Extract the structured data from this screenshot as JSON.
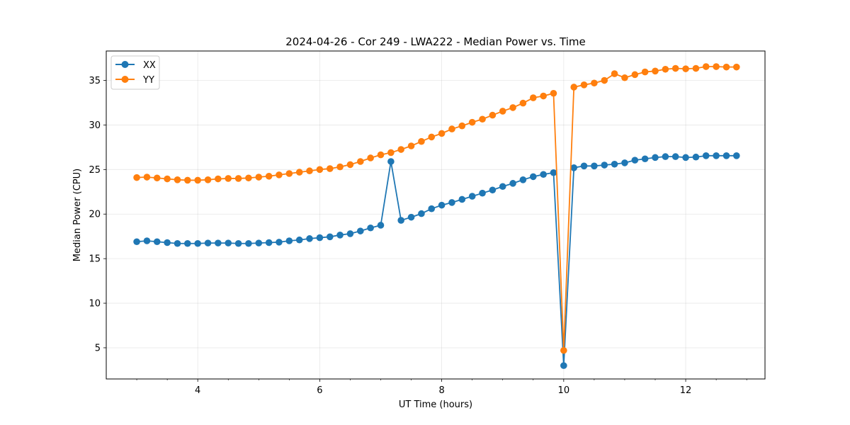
{
  "chart_data": {
    "type": "line",
    "title": "2024-04-26 - Cor 249 - LWA222 - Median Power vs. Time",
    "xlabel": "UT Time (hours)",
    "ylabel": "Median Power (CPU)",
    "xlim": [
      2.5,
      13.3
    ],
    "ylim": [
      1.5,
      38.3
    ],
    "xticks": [
      4,
      6,
      8,
      10,
      12
    ],
    "yticks": [
      5,
      10,
      15,
      20,
      25,
      30,
      35
    ],
    "grid": true,
    "legend": "top-left",
    "x": [
      3.0,
      3.167,
      3.333,
      3.5,
      3.667,
      3.833,
      4.0,
      4.167,
      4.333,
      4.5,
      4.667,
      4.833,
      5.0,
      5.167,
      5.333,
      5.5,
      5.667,
      5.833,
      6.0,
      6.167,
      6.333,
      6.5,
      6.667,
      6.833,
      7.0,
      7.167,
      7.333,
      7.5,
      7.667,
      7.833,
      8.0,
      8.167,
      8.333,
      8.5,
      8.667,
      8.833,
      9.0,
      9.167,
      9.333,
      9.5,
      9.667,
      9.833,
      10.0,
      10.167,
      10.333,
      10.5,
      10.667,
      10.833,
      11.0,
      11.167,
      11.333,
      11.5,
      11.667,
      11.833,
      12.0,
      12.167,
      12.333,
      12.5,
      12.667,
      12.833
    ],
    "series": [
      {
        "name": "XX",
        "color": "#1f77b4",
        "values": [
          16.9,
          17.0,
          16.9,
          16.8,
          16.7,
          16.7,
          16.7,
          16.75,
          16.75,
          16.75,
          16.7,
          16.7,
          16.75,
          16.8,
          16.85,
          17.0,
          17.1,
          17.25,
          17.35,
          17.45,
          17.65,
          17.8,
          18.1,
          18.45,
          18.75,
          25.9,
          19.3,
          19.65,
          20.05,
          20.6,
          21.0,
          21.3,
          21.65,
          22.0,
          22.35,
          22.7,
          23.1,
          23.45,
          23.85,
          24.2,
          24.45,
          24.65,
          3.0,
          25.2,
          25.4,
          25.4,
          25.5,
          25.6,
          25.75,
          26.05,
          26.2,
          26.35,
          26.45,
          26.45,
          26.35,
          26.4,
          26.55,
          26.55,
          26.55,
          26.55
        ]
      },
      {
        "name": "YY",
        "color": "#ff7f0e",
        "values": [
          24.1,
          24.15,
          24.05,
          23.95,
          23.85,
          23.8,
          23.8,
          23.85,
          23.95,
          24.0,
          24.0,
          24.05,
          24.15,
          24.25,
          24.4,
          24.55,
          24.7,
          24.85,
          25.0,
          25.1,
          25.3,
          25.55,
          25.9,
          26.3,
          26.65,
          26.9,
          27.25,
          27.65,
          28.15,
          28.65,
          29.05,
          29.55,
          29.9,
          30.3,
          30.65,
          31.1,
          31.55,
          31.95,
          32.45,
          33.05,
          33.25,
          33.55,
          4.7,
          34.25,
          34.5,
          34.7,
          35.0,
          35.75,
          35.3,
          35.65,
          35.95,
          36.05,
          36.25,
          36.35,
          36.3,
          36.35,
          36.55,
          36.55,
          36.5,
          36.5
        ]
      }
    ]
  }
}
